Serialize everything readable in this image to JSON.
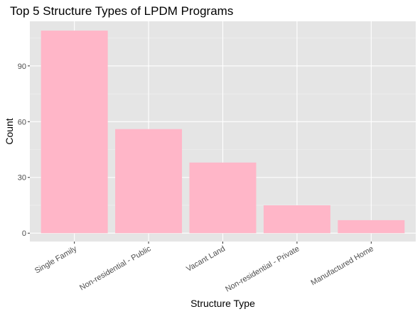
{
  "chart_data": {
    "type": "bar",
    "title": "Top 5 Structure Types of LPDM Programs",
    "xlabel": "Structure Type",
    "ylabel": "Count",
    "categories": [
      "Single Family",
      "Non-residential - Public",
      "Vacant Land",
      "Non-residential - Private",
      "Manufactured Home"
    ],
    "values": [
      109,
      56,
      38,
      15,
      7
    ],
    "ylim": [
      -4.5,
      114
    ],
    "yticks": [
      0,
      30,
      60,
      90
    ],
    "grid": true,
    "legend": "none",
    "colors": {
      "bar": "#ffb6c8",
      "panel_background": "#e5e5e5",
      "grid_major": "#ffffff",
      "tick_text": "#4d4d4d"
    }
  }
}
